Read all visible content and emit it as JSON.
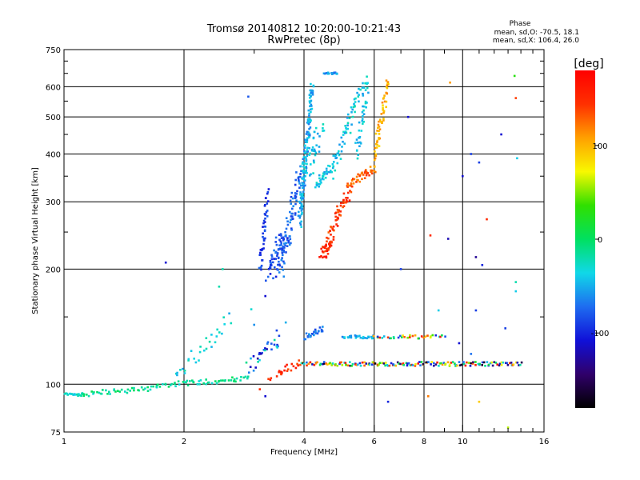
{
  "chart_data": {
    "type": "scatter",
    "title": "Tromsø 20140812 10:20:00-10:21:43",
    "subtitle": "RwPretec (8p)",
    "xlabel": "Frequency [MHz]",
    "ylabel": "Stationary phase Virtual Height [km]",
    "x_scale": "log",
    "y_scale": "log",
    "xlim": [
      1,
      16
    ],
    "ylim": [
      75,
      750
    ],
    "grid": true,
    "x_ticks": [
      1,
      2,
      4,
      6,
      8,
      10,
      16
    ],
    "x_tick_labels": [
      "1",
      "2",
      "4",
      "6",
      "8",
      "10",
      "16"
    ],
    "y_ticks": [
      75,
      100,
      200,
      300,
      400,
      500,
      600,
      750
    ],
    "y_tick_labels": [
      "75",
      "100",
      "200",
      "300",
      "400",
      "500",
      "600",
      "750"
    ],
    "phase_box": {
      "title": "Phase",
      "line_o": "mean, sd,O: -70.5, 18.1",
      "line_x": "mean, sd,X: 106.4, 26.0"
    },
    "colorbar": {
      "label": "[deg]",
      "range": [
        -180,
        180
      ],
      "ticks": [
        100,
        0,
        -100
      ],
      "tick_labels": [
        "100",
        "0",
        "-100"
      ]
    },
    "traces": [
      {
        "f0": 0.98,
        "f1": 1.12,
        "h0": 94,
        "h1": 94,
        "n": 25,
        "phase": -25,
        "jf": 0.004,
        "jh": 0.008
      },
      {
        "f0": 1.12,
        "f1": 1.7,
        "h0": 94,
        "h1": 98,
        "n": 40,
        "phase": -15,
        "jf": 0.01,
        "jh": 0.015
      },
      {
        "f0": 1.7,
        "f1": 2.9,
        "h0": 99,
        "h1": 104,
        "n": 55,
        "phase": -15,
        "jf": 0.01,
        "jh": 0.015
      },
      {
        "f0": 1.9,
        "f1": 2.6,
        "h0": 102,
        "h1": 150,
        "n": 30,
        "phase": -35,
        "jf": 0.01,
        "jh": 0.04
      },
      {
        "f0": 3.1,
        "f1": 3.25,
        "h0": 190,
        "h1": 330,
        "n": 45,
        "phase": -90,
        "jf": 0.01,
        "jh": 0.02
      },
      {
        "f0": 3.3,
        "f1": 3.55,
        "h0": 190,
        "h1": 250,
        "n": 60,
        "phase": -85,
        "jf": 0.03,
        "jh": 0.03
      },
      {
        "f0": 3.5,
        "f1": 3.9,
        "h0": 190,
        "h1": 380,
        "n": 80,
        "phase": -75,
        "jf": 0.02,
        "jh": 0.03
      },
      {
        "f0": 3.9,
        "f1": 4.2,
        "h0": 250,
        "h1": 640,
        "n": 140,
        "phase": -50,
        "jf": 0.01,
        "jh": 0.03
      },
      {
        "f0": 4.0,
        "f1": 4.4,
        "h0": 340,
        "h1": 480,
        "n": 40,
        "phase": -40,
        "jf": 0.03,
        "jh": 0.04
      },
      {
        "f0": 4.3,
        "f1": 4.7,
        "h0": 330,
        "h1": 370,
        "n": 35,
        "phase": -45,
        "jf": 0.02,
        "jh": 0.02
      },
      {
        "f0": 4.7,
        "f1": 5.6,
        "h0": 350,
        "h1": 620,
        "n": 60,
        "phase": -40,
        "jf": 0.01,
        "jh": 0.03
      },
      {
        "f0": 5.4,
        "f1": 5.8,
        "h0": 370,
        "h1": 650,
        "n": 40,
        "phase": -40,
        "jf": 0.01,
        "jh": 0.03
      },
      {
        "f0": 4.5,
        "f1": 4.85,
        "h0": 650,
        "h1": 650,
        "n": 18,
        "phase": -55,
        "jf": 0.01,
        "jh": 0.005
      },
      {
        "f0": 4.45,
        "f1": 4.7,
        "h0": 215,
        "h1": 240,
        "n": 40,
        "phase": 150,
        "jf": 0.02,
        "jh": 0.02
      },
      {
        "f0": 4.65,
        "f1": 5.2,
        "h0": 240,
        "h1": 330,
        "n": 50,
        "phase": 145,
        "jf": 0.02,
        "jh": 0.03
      },
      {
        "f0": 5.2,
        "f1": 6.0,
        "h0": 330,
        "h1": 370,
        "n": 40,
        "phase": 130,
        "jf": 0.02,
        "jh": 0.02
      },
      {
        "f0": 6.0,
        "f1": 6.5,
        "h0": 360,
        "h1": 650,
        "n": 60,
        "phase": 100,
        "jf": 0.01,
        "jh": 0.03
      },
      {
        "f0": 3.3,
        "f1": 3.9,
        "h0": 104,
        "h1": 114,
        "n": 25,
        "phase": 150,
        "jf": 0.02,
        "jh": 0.02
      },
      {
        "f0": 3.9,
        "f1": 14.0,
        "h0": 113,
        "h1": 113,
        "n": 170,
        "phase": 0,
        "pr": 180,
        "jf": 0.005,
        "jh": 0.012
      },
      {
        "f0": 4.0,
        "f1": 4.5,
        "h0": 133,
        "h1": 140,
        "n": 25,
        "phase": -70,
        "jf": 0.01,
        "jh": 0.02
      },
      {
        "f0": 5.0,
        "f1": 6.0,
        "h0": 133,
        "h1": 133,
        "n": 30,
        "phase": -50,
        "jf": 0.01,
        "jh": 0.01
      },
      {
        "f0": 6.0,
        "f1": 9.0,
        "h0": 133,
        "h1": 133,
        "n": 35,
        "phase": 40,
        "pr": 140,
        "jf": 0.01,
        "jh": 0.01
      },
      {
        "f0": 2.9,
        "f1": 3.5,
        "h0": 108,
        "h1": 135,
        "n": 30,
        "phase": -70,
        "pr": 60,
        "jf": 0.02,
        "jh": 0.04
      }
    ],
    "isolated_points": [
      {
        "x": 2.9,
        "y": 565,
        "phase": -80
      },
      {
        "x": 1.8,
        "y": 208,
        "phase": -110
      },
      {
        "x": 2.5,
        "y": 200,
        "phase": -20
      },
      {
        "x": 2.45,
        "y": 180,
        "phase": -20
      },
      {
        "x": 2.95,
        "y": 157,
        "phase": -30
      },
      {
        "x": 7.3,
        "y": 500,
        "phase": -110
      },
      {
        "x": 8.3,
        "y": 245,
        "phase": 150
      },
      {
        "x": 9.2,
        "y": 240,
        "phase": -120
      },
      {
        "x": 9.3,
        "y": 615,
        "phase": 110
      },
      {
        "x": 10.5,
        "y": 400,
        "phase": -90
      },
      {
        "x": 11.0,
        "y": 380,
        "phase": -90
      },
      {
        "x": 10.0,
        "y": 350,
        "phase": -110
      },
      {
        "x": 11.5,
        "y": 270,
        "phase": 150
      },
      {
        "x": 10.8,
        "y": 215,
        "phase": -130
      },
      {
        "x": 11.2,
        "y": 205,
        "phase": -100
      },
      {
        "x": 12.5,
        "y": 450,
        "phase": -110
      },
      {
        "x": 13.5,
        "y": 640,
        "phase": 30
      },
      {
        "x": 13.6,
        "y": 560,
        "phase": 140
      },
      {
        "x": 13.7,
        "y": 390,
        "phase": -40
      },
      {
        "x": 13.6,
        "y": 185,
        "phase": -20
      },
      {
        "x": 13.6,
        "y": 175,
        "phase": -40
      },
      {
        "x": 10.8,
        "y": 156,
        "phase": -90
      },
      {
        "x": 8.7,
        "y": 156,
        "phase": -40
      },
      {
        "x": 12.8,
        "y": 140,
        "phase": -90
      },
      {
        "x": 9.8,
        "y": 128,
        "phase": -110
      },
      {
        "x": 10.5,
        "y": 120,
        "phase": -70
      },
      {
        "x": 11.0,
        "y": 90,
        "phase": 90
      },
      {
        "x": 13.0,
        "y": 77,
        "phase": 60
      },
      {
        "x": 6.5,
        "y": 90,
        "phase": -100
      },
      {
        "x": 8.2,
        "y": 93,
        "phase": 120
      },
      {
        "x": 7.0,
        "y": 200,
        "phase": -90
      },
      {
        "x": 3.2,
        "y": 170,
        "phase": -110
      },
      {
        "x": 3.1,
        "y": 97,
        "phase": 150
      },
      {
        "x": 3.2,
        "y": 93,
        "phase": -110
      },
      {
        "x": 3.0,
        "y": 143,
        "phase": -60
      },
      {
        "x": 3.6,
        "y": 145,
        "phase": -50
      }
    ]
  }
}
